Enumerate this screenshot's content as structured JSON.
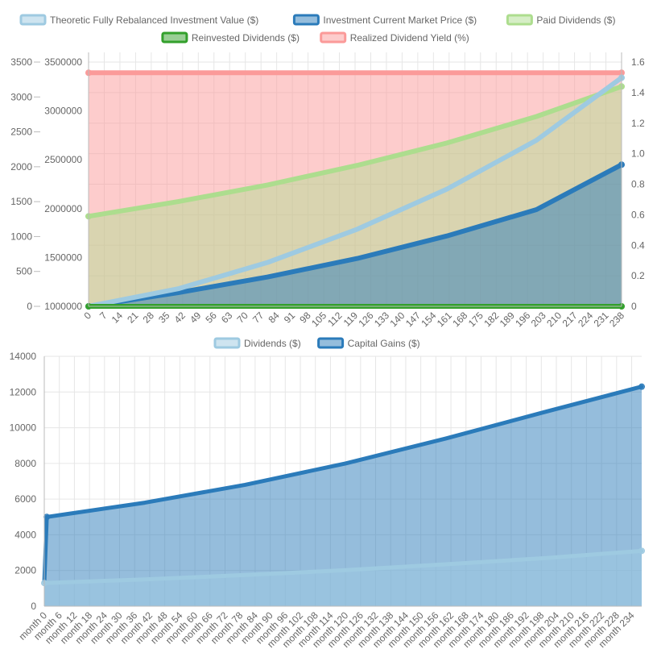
{
  "chart_data": [
    {
      "type": "line",
      "x_step": 7,
      "x_tick_labels": [
        "0",
        "7",
        "14",
        "21",
        "28",
        "35",
        "42",
        "49",
        "56",
        "63",
        "70",
        "77",
        "84",
        "91",
        "98",
        "105",
        "112",
        "119",
        "126",
        "133",
        "140",
        "147",
        "154",
        "161",
        "168",
        "175",
        "182",
        "189",
        "196",
        "203",
        "210",
        "217",
        "224",
        "231",
        "238"
      ],
      "axes": {
        "y_left_outer": {
          "ticks": [
            "0",
            "500",
            "1000",
            "1500",
            "2000",
            "2500",
            "3000",
            "3500"
          ],
          "range": [
            0,
            3500
          ]
        },
        "y_left_inner": {
          "ticks": [
            "1000000",
            "1500000",
            "2000000",
            "2500000",
            "3000000",
            "3500000"
          ],
          "range": [
            1000000,
            3500000
          ]
        },
        "y_right": {
          "ticks": [
            "0",
            "0.2",
            "0.4",
            "0.6",
            "0.8",
            "1.0",
            "1.2",
            "1.4",
            "1.6"
          ],
          "range": [
            0,
            1.6
          ]
        }
      },
      "grid": true,
      "legend_position": "top",
      "series": [
        {
          "name": "Theoretic Fully Rebalanced Investment Value ($)",
          "axis": "y_left_inner",
          "color": "#9ecae1",
          "fill": false,
          "points": [
            [
              0,
              1000000
            ],
            [
              40,
              1180000
            ],
            [
              80,
              1450000
            ],
            [
              120,
              1790000
            ],
            [
              160,
              2200000
            ],
            [
              200,
              2700000
            ],
            [
              238,
              3340000
            ]
          ]
        },
        {
          "name": "Investment Current Market Price ($)",
          "axis": "y_left_inner",
          "color": "#2b7bba",
          "fill": true,
          "points": [
            [
              0,
              1000000
            ],
            [
              40,
              1140000
            ],
            [
              80,
              1300000
            ],
            [
              120,
              1490000
            ],
            [
              160,
              1720000
            ],
            [
              200,
              1990000
            ],
            [
              238,
              2450000
            ]
          ]
        },
        {
          "name": "Paid Dividends ($)",
          "axis": "y_left_outer",
          "color": "#addd8e",
          "fill": true,
          "points": [
            [
              0,
              1290
            ],
            [
              40,
              1500
            ],
            [
              80,
              1740
            ],
            [
              120,
              2020
            ],
            [
              160,
              2340
            ],
            [
              200,
              2720
            ],
            [
              238,
              3150
            ]
          ]
        },
        {
          "name": "Reinvested Dividends ($)",
          "axis": "y_left_outer",
          "color": "#33a02c",
          "fill": true,
          "points": [
            [
              0,
              0
            ],
            [
              238,
              0
            ]
          ]
        },
        {
          "name": "Realized Dividend Yield (%)",
          "axis": "y_right",
          "color": "#fb9a99",
          "fill": true,
          "points": [
            [
              0,
              1.53
            ],
            [
              238,
              1.53
            ]
          ]
        }
      ]
    },
    {
      "type": "area",
      "x_step": 6,
      "x_tick_labels": [
        "month 0",
        "month 6",
        "month 12",
        "month 18",
        "month 24",
        "month 30",
        "month 36",
        "month 42",
        "month 48",
        "month 54",
        "month 60",
        "month 66",
        "month 72",
        "month 78",
        "month 84",
        "month 90",
        "month 96",
        "month 102",
        "month 108",
        "month 114",
        "month 120",
        "month 126",
        "month 132",
        "month 138",
        "month 144",
        "month 150",
        "month 156",
        "month 162",
        "month 168",
        "month 174",
        "month 180",
        "month 186",
        "month 192",
        "month 198",
        "month 204",
        "month 210",
        "month 216",
        "month 222",
        "month 228",
        "month 234"
      ],
      "y_axis": {
        "ticks": [
          "0",
          "2000",
          "4000",
          "6000",
          "8000",
          "10000",
          "12000",
          "14000"
        ],
        "range": [
          0,
          14000
        ]
      },
      "grid": true,
      "legend_position": "top",
      "series": [
        {
          "name": "Dividends ($)",
          "color": "#9ecae1",
          "points": [
            [
              0,
              1300
            ],
            [
              40,
              1500
            ],
            [
              80,
              1750
            ],
            [
              120,
              2020
            ],
            [
              160,
              2350
            ],
            [
              200,
              2700
            ],
            [
              238,
              3100
            ]
          ]
        },
        {
          "name": "Capital Gains ($)",
          "color": "#2b7bba",
          "points": [
            [
              0,
              1300
            ],
            [
              1,
              5000
            ],
            [
              40,
              5800
            ],
            [
              80,
              6800
            ],
            [
              120,
              8000
            ],
            [
              160,
              9400
            ],
            [
              200,
              10900
            ],
            [
              238,
              12300
            ]
          ]
        }
      ]
    }
  ]
}
